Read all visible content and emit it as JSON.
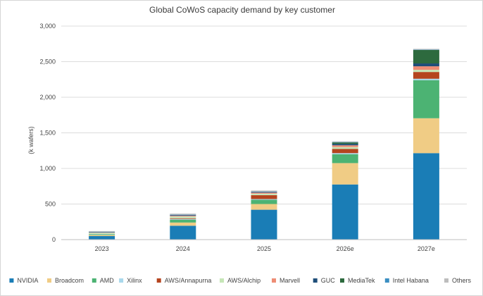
{
  "chart_data": {
    "type": "bar",
    "stacked": true,
    "title": "Global CoWoS capacity demand by key customer",
    "ylabel": "(k wafers)",
    "xlabel": "",
    "categories": [
      "2023",
      "2024",
      "2025",
      "2026e",
      "2027e"
    ],
    "ylim": [
      0,
      3000
    ],
    "yticks": [
      0,
      500,
      1000,
      1500,
      2000,
      2500,
      3000
    ],
    "ytick_labels": [
      "0",
      "500",
      "1,000",
      "1,500",
      "2,000",
      "2,500",
      "3,000"
    ],
    "grid": true,
    "legend_position": "bottom",
    "series": [
      {
        "name": "NVIDIA",
        "color": "#1a7db6",
        "values": [
          50,
          195,
          420,
          775,
          1215
        ]
      },
      {
        "name": "Broadcom",
        "color": "#f0cc85",
        "values": [
          15,
          45,
          80,
          300,
          490
        ]
      },
      {
        "name": "AMD",
        "color": "#4cb373",
        "values": [
          10,
          40,
          60,
          125,
          535
        ]
      },
      {
        "name": "Xilinx",
        "color": "#a9d8ec",
        "values": [
          5,
          10,
          10,
          15,
          20
        ]
      },
      {
        "name": "AWS/Annapurna",
        "color": "#b5451f",
        "values": [
          0,
          10,
          55,
          60,
          95
        ]
      },
      {
        "name": "AWS/Alchip",
        "color": "#c6e6b7",
        "values": [
          15,
          25,
          20,
          25,
          30
        ]
      },
      {
        "name": "Marvell",
        "color": "#ee8d75",
        "values": [
          5,
          10,
          15,
          25,
          50
        ]
      },
      {
        "name": "GUC",
        "color": "#1f4e79",
        "values": [
          5,
          10,
          10,
          20,
          40
        ]
      },
      {
        "name": "MediaTek",
        "color": "#2d6a3e",
        "values": [
          0,
          0,
          0,
          20,
          190
        ]
      },
      {
        "name": "Intel Habana",
        "color": "#3b8fc2",
        "values": [
          5,
          5,
          5,
          5,
          5
        ]
      },
      {
        "name": "Others",
        "color": "#bdbdbd",
        "values": [
          10,
          15,
          15,
          10,
          10
        ]
      }
    ]
  }
}
